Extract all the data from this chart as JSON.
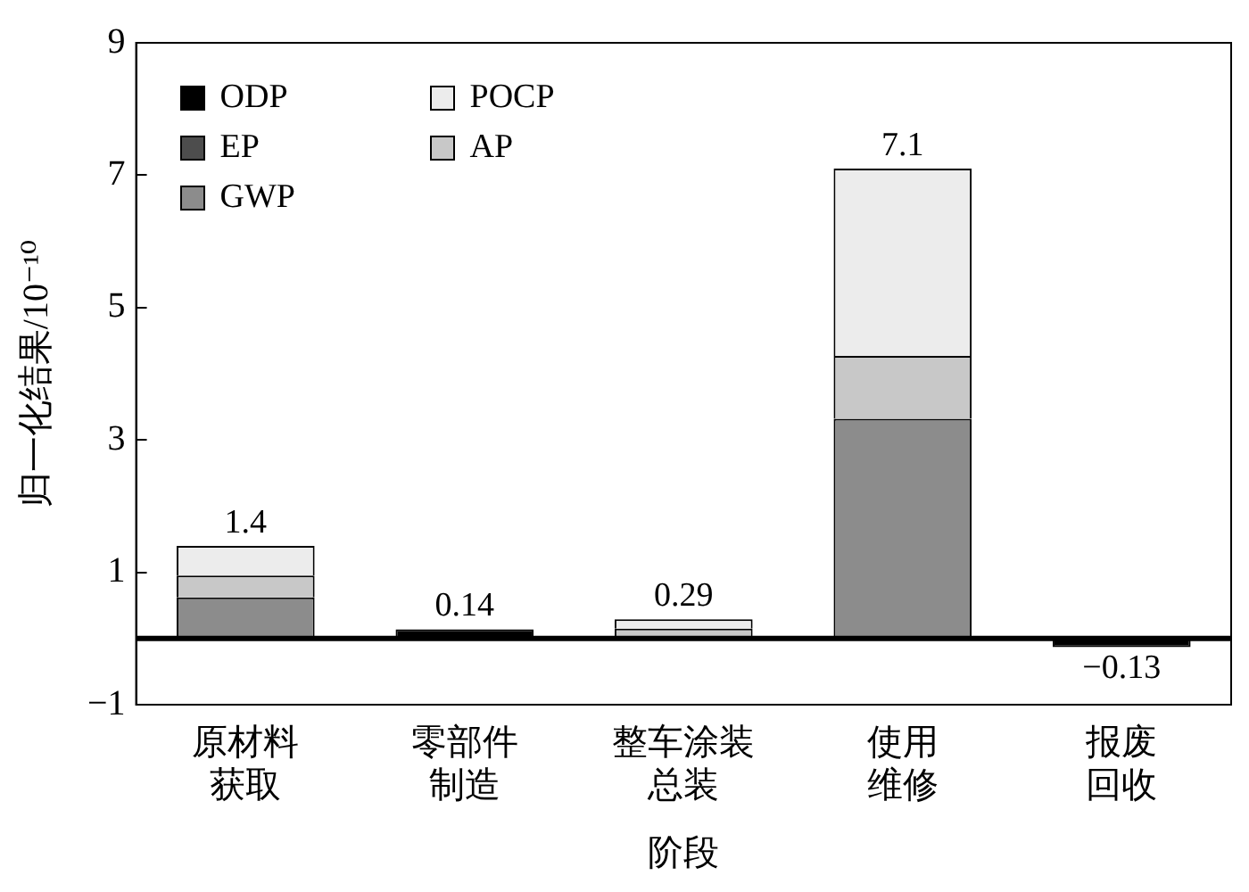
{
  "chart_data": {
    "type": "bar",
    "stacked": true,
    "xlabel": "阶段",
    "ylabel": "归一化结果/10⁻¹⁰",
    "categories": [
      "原材料获取",
      "零部件制造",
      "整车涂装总装",
      "使用维修",
      "报废回收"
    ],
    "series": [
      {
        "name": "GWP",
        "color": "#8c8c8c",
        "values": [
          0.62,
          0,
          0,
          3.32,
          0
        ]
      },
      {
        "name": "EP",
        "color": "#4d4d4d",
        "values": [
          0,
          0,
          0,
          0,
          0
        ]
      },
      {
        "name": "AP",
        "color": "#c8c8c8",
        "values": [
          0.33,
          0,
          0.15,
          0.95,
          0
        ]
      },
      {
        "name": "POCP",
        "color": "#ececec",
        "values": [
          0.45,
          0,
          0.14,
          2.83,
          0
        ]
      },
      {
        "name": "ODP",
        "color": "#000000",
        "values": [
          0,
          0.14,
          0,
          0,
          -0.13
        ]
      }
    ],
    "totals": [
      "1.4",
      "0.14",
      "0.29",
      "7.1",
      "−0.13"
    ],
    "ylim": [
      -1,
      9
    ],
    "yticks": [
      {
        "value": -1,
        "label": "−1"
      },
      1,
      3,
      5,
      7,
      9
    ],
    "ref_lines": [
      {
        "axis": "y",
        "value": 0,
        "color": "#000000"
      }
    ],
    "grid": false,
    "legend": "top left"
  }
}
